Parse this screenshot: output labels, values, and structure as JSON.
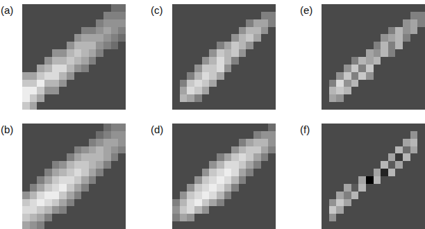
{
  "chart_data": [
    {
      "type": "heatmap",
      "title": "(a)",
      "zlim": [
        -4,
        10
      ],
      "tick_labels": false,
      "cells": [
        [
          0,
          0,
          0,
          0,
          0,
          0,
          0,
          0,
          0,
          0,
          0,
          0,
          2,
          2
        ],
        [
          0,
          0,
          0,
          0,
          0,
          0,
          0,
          0,
          0,
          0,
          0,
          3,
          3,
          3
        ],
        [
          0,
          0,
          0,
          0,
          0,
          0,
          0,
          0,
          0,
          0,
          3,
          4,
          4,
          4
        ],
        [
          0,
          0,
          0,
          0,
          0,
          0,
          0,
          0,
          3,
          3,
          4,
          5,
          4,
          3
        ],
        [
          0,
          0,
          0,
          0,
          0,
          0,
          0,
          4,
          5,
          5,
          5,
          4,
          3,
          2
        ],
        [
          0,
          0,
          0,
          0,
          0,
          0,
          4,
          6,
          6,
          6,
          4,
          3,
          2,
          0
        ],
        [
          0,
          0,
          0,
          0,
          4,
          4,
          6,
          7,
          6,
          5,
          3,
          0,
          0,
          0
        ],
        [
          0,
          0,
          0,
          4,
          6,
          6,
          7,
          6,
          5,
          3,
          0,
          0,
          0,
          0
        ],
        [
          0,
          0,
          5,
          6,
          8,
          8,
          6,
          4,
          3,
          0,
          0,
          0,
          0,
          0
        ],
        [
          5,
          5,
          7,
          8,
          8,
          6,
          4,
          0,
          0,
          0,
          0,
          0,
          0,
          0
        ],
        [
          7,
          7,
          9,
          6,
          6,
          4,
          0,
          0,
          0,
          0,
          0,
          0,
          0,
          0
        ],
        [
          9,
          9,
          7,
          4,
          4,
          0,
          0,
          0,
          0,
          0,
          0,
          0,
          0,
          0
        ],
        [
          9,
          7,
          5,
          0,
          0,
          0,
          0,
          0,
          0,
          0,
          0,
          0,
          0,
          0
        ],
        [
          7,
          5,
          0,
          0,
          0,
          0,
          0,
          0,
          0,
          0,
          0,
          0,
          0,
          0
        ]
      ]
    },
    {
      "type": "heatmap",
      "title": "(b)",
      "zlim": [
        -4,
        10
      ],
      "tick_labels": false,
      "cells": [
        [
          0,
          0,
          0,
          0,
          0,
          0,
          0,
          0,
          0,
          0,
          0,
          2,
          3,
          3
        ],
        [
          0,
          0,
          0,
          0,
          0,
          0,
          0,
          0,
          0,
          0,
          2,
          3,
          4,
          4
        ],
        [
          0,
          0,
          0,
          0,
          0,
          0,
          0,
          0,
          0,
          3,
          4,
          5,
          5,
          4
        ],
        [
          0,
          0,
          0,
          0,
          0,
          0,
          0,
          3,
          4,
          5,
          6,
          5,
          4,
          3
        ],
        [
          0,
          0,
          0,
          0,
          0,
          0,
          3,
          5,
          6,
          6,
          6,
          5,
          3,
          0
        ],
        [
          0,
          0,
          0,
          0,
          3,
          4,
          6,
          7,
          7,
          6,
          5,
          3,
          0,
          0
        ],
        [
          0,
          0,
          0,
          3,
          5,
          6,
          7,
          8,
          7,
          5,
          3,
          0,
          0,
          0
        ],
        [
          0,
          0,
          3,
          5,
          7,
          8,
          8,
          7,
          5,
          3,
          0,
          0,
          0,
          0
        ],
        [
          0,
          3,
          5,
          7,
          8,
          9,
          7,
          5,
          3,
          0,
          0,
          0,
          0,
          0
        ],
        [
          4,
          6,
          8,
          9,
          9,
          7,
          5,
          3,
          0,
          0,
          0,
          0,
          0,
          0
        ],
        [
          7,
          8,
          9,
          8,
          7,
          5,
          3,
          0,
          0,
          0,
          0,
          0,
          0,
          0
        ],
        [
          8,
          8,
          7,
          6,
          4,
          3,
          0,
          0,
          0,
          0,
          0,
          0,
          0,
          0
        ],
        [
          7,
          6,
          5,
          3,
          0,
          0,
          0,
          0,
          0,
          0,
          0,
          0,
          0,
          0
        ],
        [
          5,
          4,
          3,
          0,
          0,
          0,
          0,
          0,
          0,
          0,
          0,
          0,
          0,
          0
        ]
      ]
    },
    {
      "type": "heatmap",
      "title": "(c)",
      "zlim": [
        -4,
        10
      ],
      "tick_labels": false,
      "cells": [
        [
          0,
          0,
          0,
          0,
          0,
          0,
          0,
          0,
          0,
          0,
          0,
          0,
          0,
          0
        ],
        [
          0,
          0,
          0,
          0,
          0,
          0,
          0,
          0,
          0,
          0,
          0,
          0,
          3,
          3
        ],
        [
          0,
          0,
          0,
          0,
          0,
          0,
          0,
          0,
          0,
          0,
          3,
          5,
          5,
          3
        ],
        [
          0,
          0,
          0,
          0,
          0,
          0,
          0,
          0,
          0,
          4,
          6,
          6,
          4,
          0
        ],
        [
          0,
          0,
          0,
          0,
          0,
          0,
          0,
          0,
          4,
          6,
          7,
          5,
          0,
          0
        ],
        [
          0,
          0,
          0,
          0,
          0,
          0,
          3,
          5,
          7,
          6,
          4,
          0,
          0,
          0
        ],
        [
          0,
          0,
          0,
          0,
          0,
          4,
          7,
          6,
          7,
          4,
          0,
          0,
          0,
          0
        ],
        [
          0,
          0,
          0,
          0,
          4,
          6,
          8,
          6,
          3,
          0,
          0,
          0,
          0,
          0
        ],
        [
          0,
          0,
          0,
          4,
          7,
          7,
          8,
          4,
          0,
          0,
          0,
          0,
          0,
          0
        ],
        [
          0,
          0,
          3,
          6,
          8,
          7,
          5,
          0,
          0,
          0,
          0,
          0,
          0,
          0
        ],
        [
          0,
          3,
          7,
          8,
          7,
          5,
          0,
          0,
          0,
          0,
          0,
          0,
          0,
          0
        ],
        [
          0,
          5,
          8,
          7,
          5,
          0,
          0,
          0,
          0,
          0,
          0,
          0,
          0,
          0
        ],
        [
          0,
          6,
          5,
          3,
          0,
          0,
          0,
          0,
          0,
          0,
          0,
          0,
          0,
          0
        ],
        [
          0,
          0,
          0,
          0,
          0,
          0,
          0,
          0,
          0,
          0,
          0,
          0,
          0,
          0
        ]
      ]
    },
    {
      "type": "heatmap",
      "title": "(d)",
      "zlim": [
        -4,
        10
      ],
      "tick_labels": false,
      "cells": [
        [
          0,
          0,
          0,
          0,
          0,
          0,
          0,
          0,
          0,
          0,
          0,
          0,
          0,
          2
        ],
        [
          0,
          0,
          0,
          0,
          0,
          0,
          0,
          0,
          0,
          0,
          0,
          3,
          4,
          4
        ],
        [
          0,
          0,
          0,
          0,
          0,
          0,
          0,
          0,
          0,
          3,
          5,
          6,
          6,
          4
        ],
        [
          0,
          0,
          0,
          0,
          0,
          0,
          0,
          0,
          4,
          6,
          7,
          7,
          5,
          3
        ],
        [
          0,
          0,
          0,
          0,
          0,
          0,
          3,
          5,
          7,
          8,
          7,
          5,
          3,
          0
        ],
        [
          0,
          0,
          0,
          0,
          0,
          4,
          6,
          8,
          8,
          7,
          5,
          3,
          0,
          0
        ],
        [
          0,
          0,
          0,
          0,
          4,
          7,
          8,
          9,
          8,
          5,
          3,
          0,
          0,
          0
        ],
        [
          0,
          0,
          0,
          4,
          7,
          8,
          9,
          8,
          6,
          3,
          0,
          0,
          0,
          0
        ],
        [
          0,
          0,
          4,
          7,
          8,
          9,
          8,
          6,
          3,
          0,
          0,
          0,
          0,
          0
        ],
        [
          0,
          4,
          7,
          8,
          9,
          8,
          6,
          3,
          0,
          0,
          0,
          0,
          0,
          0
        ],
        [
          3,
          6,
          8,
          9,
          7,
          5,
          3,
          0,
          0,
          0,
          0,
          0,
          0,
          0
        ],
        [
          4,
          7,
          8,
          6,
          4,
          0,
          0,
          0,
          0,
          0,
          0,
          0,
          0,
          0
        ],
        [
          3,
          5,
          4,
          0,
          0,
          0,
          0,
          0,
          0,
          0,
          0,
          0,
          0,
          0
        ],
        [
          0,
          0,
          0,
          0,
          0,
          0,
          0,
          0,
          0,
          0,
          0,
          0,
          0,
          0
        ]
      ]
    },
    {
      "type": "heatmap",
      "title": "(e)",
      "zlim": [
        -4,
        10
      ],
      "tick_labels": false,
      "cells": [
        [
          0,
          0,
          0,
          0,
          0,
          0,
          0,
          0,
          0,
          0,
          0,
          0,
          0,
          0
        ],
        [
          0,
          0,
          0,
          0,
          0,
          0,
          0,
          0,
          0,
          0,
          0,
          0,
          3,
          3
        ],
        [
          0,
          0,
          0,
          0,
          0,
          0,
          0,
          0,
          0,
          0,
          0,
          4,
          5,
          3
        ],
        [
          0,
          0,
          0,
          0,
          0,
          0,
          0,
          0,
          0,
          3,
          6,
          4,
          5,
          0
        ],
        [
          0,
          0,
          0,
          0,
          0,
          0,
          0,
          0,
          4,
          5,
          6,
          3,
          0,
          0
        ],
        [
          0,
          0,
          0,
          0,
          0,
          0,
          0,
          3,
          6,
          3,
          6,
          0,
          0,
          0
        ],
        [
          0,
          0,
          0,
          0,
          0,
          0,
          5,
          4,
          6,
          3,
          0,
          0,
          0,
          0
        ],
        [
          0,
          0,
          0,
          0,
          3,
          6,
          5,
          6,
          0,
          0,
          0,
          0,
          0,
          0
        ],
        [
          0,
          0,
          0,
          4,
          7,
          3,
          7,
          0,
          0,
          0,
          0,
          0,
          0,
          0
        ],
        [
          0,
          0,
          4,
          7,
          3,
          7,
          4,
          0,
          0,
          0,
          0,
          0,
          0,
          0
        ],
        [
          0,
          3,
          8,
          4,
          6,
          0,
          0,
          0,
          0,
          0,
          0,
          0,
          0,
          0
        ],
        [
          0,
          6,
          7,
          6,
          0,
          0,
          0,
          0,
          0,
          0,
          0,
          0,
          0,
          0
        ],
        [
          0,
          5,
          4,
          0,
          0,
          0,
          0,
          0,
          0,
          0,
          0,
          0,
          0,
          0
        ],
        [
          0,
          0,
          0,
          0,
          0,
          0,
          0,
          0,
          0,
          0,
          0,
          0,
          0,
          0
        ]
      ]
    },
    {
      "type": "heatmap",
      "title": "(f)",
      "zlim": [
        -4,
        10
      ],
      "tick_labels": false,
      "cells": [
        [
          0,
          0,
          0,
          0,
          0,
          0,
          0,
          0,
          0,
          0,
          0,
          0,
          0,
          0
        ],
        [
          0,
          0,
          0,
          0,
          0,
          0,
          0,
          0,
          0,
          0,
          0,
          0,
          4,
          0
        ],
        [
          0,
          0,
          0,
          0,
          0,
          0,
          0,
          0,
          0,
          0,
          0,
          5,
          6,
          0
        ],
        [
          0,
          0,
          0,
          0,
          0,
          0,
          0,
          0,
          0,
          0,
          6,
          2,
          5,
          0
        ],
        [
          0,
          0,
          0,
          0,
          0,
          0,
          0,
          0,
          0,
          5,
          -1,
          6,
          0,
          0
        ],
        [
          0,
          0,
          0,
          0,
          0,
          0,
          0,
          0,
          6,
          1,
          5,
          0,
          0,
          0
        ],
        [
          0,
          0,
          0,
          0,
          0,
          0,
          0,
          5,
          -2,
          6,
          0,
          0,
          0,
          0
        ],
        [
          0,
          0,
          0,
          0,
          0,
          5,
          -4,
          6,
          0,
          0,
          0,
          0,
          0,
          0
        ],
        [
          0,
          0,
          0,
          5,
          1,
          6,
          0,
          0,
          0,
          0,
          0,
          0,
          0,
          0
        ],
        [
          0,
          0,
          5,
          3,
          6,
          0,
          0,
          0,
          0,
          0,
          0,
          0,
          0,
          0
        ],
        [
          0,
          4,
          7,
          5,
          0,
          0,
          0,
          0,
          0,
          0,
          0,
          0,
          0,
          0
        ],
        [
          0,
          7,
          5,
          0,
          0,
          0,
          0,
          0,
          0,
          0,
          0,
          0,
          0,
          0
        ],
        [
          0,
          4,
          0,
          0,
          0,
          0,
          0,
          0,
          0,
          0,
          0,
          0,
          0,
          0
        ],
        [
          0,
          0,
          0,
          0,
          0,
          0,
          0,
          0,
          0,
          0,
          0,
          0,
          0,
          0
        ]
      ]
    }
  ]
}
